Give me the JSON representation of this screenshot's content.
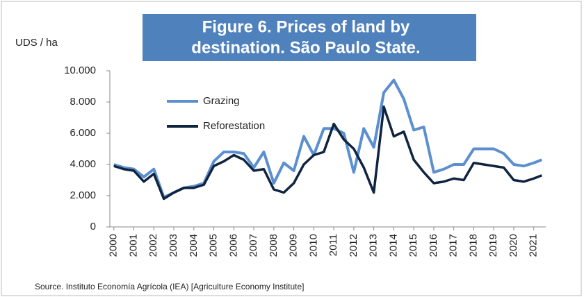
{
  "chart_data": {
    "type": "line",
    "title": [
      "Figure 6. Prices of land  by",
      "destination. São Paulo State."
    ],
    "y_label": "UDS / ha",
    "source": "Source. Instituto Economía Agrícola  (IEA) [Agriculture Economy Institute]",
    "x": [
      2000,
      2000.5,
      2001,
      2001.5,
      2002,
      2002.5,
      2003,
      2003.5,
      2004,
      2004.5,
      2005,
      2005.5,
      2006,
      2006.5,
      2007,
      2007.5,
      2008,
      2008.5,
      2009,
      2009.5,
      2010,
      2010.5,
      2011,
      2011.5,
      2012,
      2012.5,
      2013,
      2013.5,
      2014,
      2014.5,
      2015,
      2015.5,
      2016,
      2016.5,
      2017,
      2017.5,
      2018,
      2018.5,
      2019,
      2019.5,
      2020,
      2020.5,
      2021,
      2021.4
    ],
    "series": [
      {
        "name": "Grazing",
        "color": "#5b8fd0",
        "values": [
          4000,
          3800,
          3700,
          3200,
          3700,
          1900,
          2200,
          2500,
          2600,
          2800,
          4200,
          4800,
          4800,
          4700,
          3800,
          4800,
          2800,
          4100,
          3600,
          5800,
          4600,
          6300,
          6300,
          6000,
          3500,
          6300,
          5100,
          8600,
          9400,
          8200,
          6200,
          6400,
          3500,
          3700,
          4000,
          4000,
          5000,
          5000,
          5000,
          4700,
          4000,
          3900,
          4100,
          4300
        ]
      },
      {
        "name": "Reforestation",
        "color": "#0f2440",
        "values": [
          3900,
          3700,
          3600,
          2900,
          3400,
          1800,
          2200,
          2500,
          2500,
          2700,
          3900,
          4200,
          4600,
          4300,
          3600,
          3700,
          2400,
          2200,
          2800,
          4000,
          4600,
          4800,
          6600,
          5600,
          5000,
          3800,
          2200,
          7700,
          5800,
          6100,
          4300,
          3500,
          2800,
          2900,
          3100,
          3000,
          4100,
          4000,
          3900,
          3800,
          3000,
          2900,
          3100,
          3300
        ]
      }
    ],
    "xlim": [
      1999.8,
      2021.6
    ],
    "xticks": [
      2000,
      2001,
      2002,
      2003,
      2004,
      2005,
      2006,
      2007,
      2008,
      2009,
      2010,
      2011,
      2012,
      2013,
      2014,
      2015,
      2016,
      2017,
      2018,
      2019,
      2020,
      2021
    ],
    "ylim": [
      0,
      10000
    ],
    "yticks": [
      0,
      {
        "value": 2000,
        "label": "2.000"
      },
      {
        "value": 4000,
        "label": "4.000"
      },
      {
        "value": 6000,
        "label": "6.000"
      },
      {
        "value": 8000,
        "label": "8.000"
      },
      {
        "value": 10000,
        "label": "10.000"
      }
    ]
  }
}
